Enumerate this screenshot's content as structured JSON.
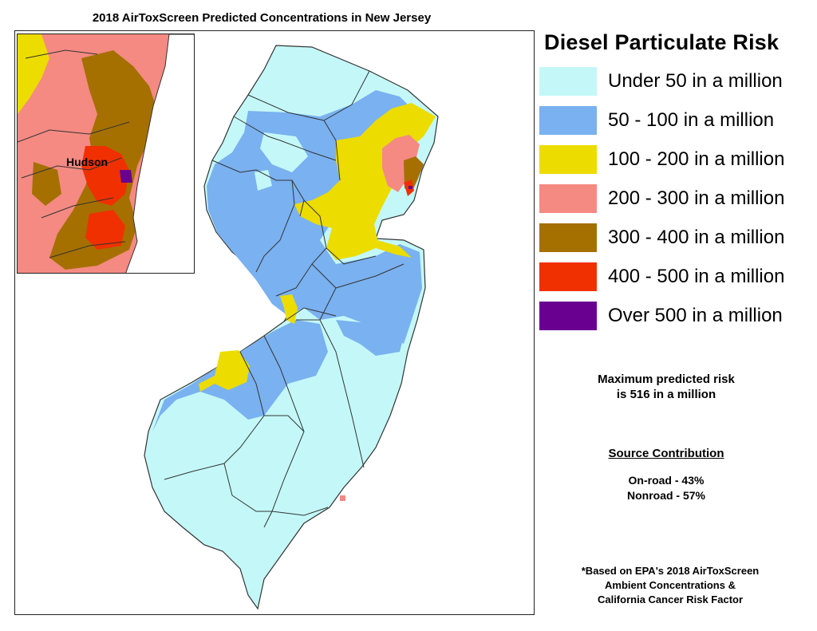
{
  "title": "2018 AirToxScreen Predicted Concentrations in New Jersey",
  "legend": {
    "title": "Diesel Particulate Risk",
    "items": [
      {
        "label": "Under 50 in a million",
        "color": "#c4f8f8"
      },
      {
        "label": "50 - 100 in a million",
        "color": "#7ab1f0"
      },
      {
        "label": "100 - 200 in a million",
        "color": "#ecdc00"
      },
      {
        "label": "200 - 300 in a million",
        "color": "#f48a82"
      },
      {
        "label": "300 - 400 in a million",
        "color": "#a57000"
      },
      {
        "label": "400 - 500 in a million",
        "color": "#f03000"
      },
      {
        "label": "Over 500 in a million",
        "color": "#6a0090"
      }
    ]
  },
  "inset": {
    "label": "Hudson"
  },
  "stats": {
    "line1": "Maximum predicted risk",
    "line2": "is 516 in a million"
  },
  "source": {
    "title": "Source Contribution",
    "onroad": "On-road - 43%",
    "nonroad": "Nonroad - 57%"
  },
  "footnote": {
    "line1": "*Based on EPA's 2018 AirToxScreen",
    "line2": "Ambient Concentrations &",
    "line3": "California Cancer Risk Factor"
  }
}
